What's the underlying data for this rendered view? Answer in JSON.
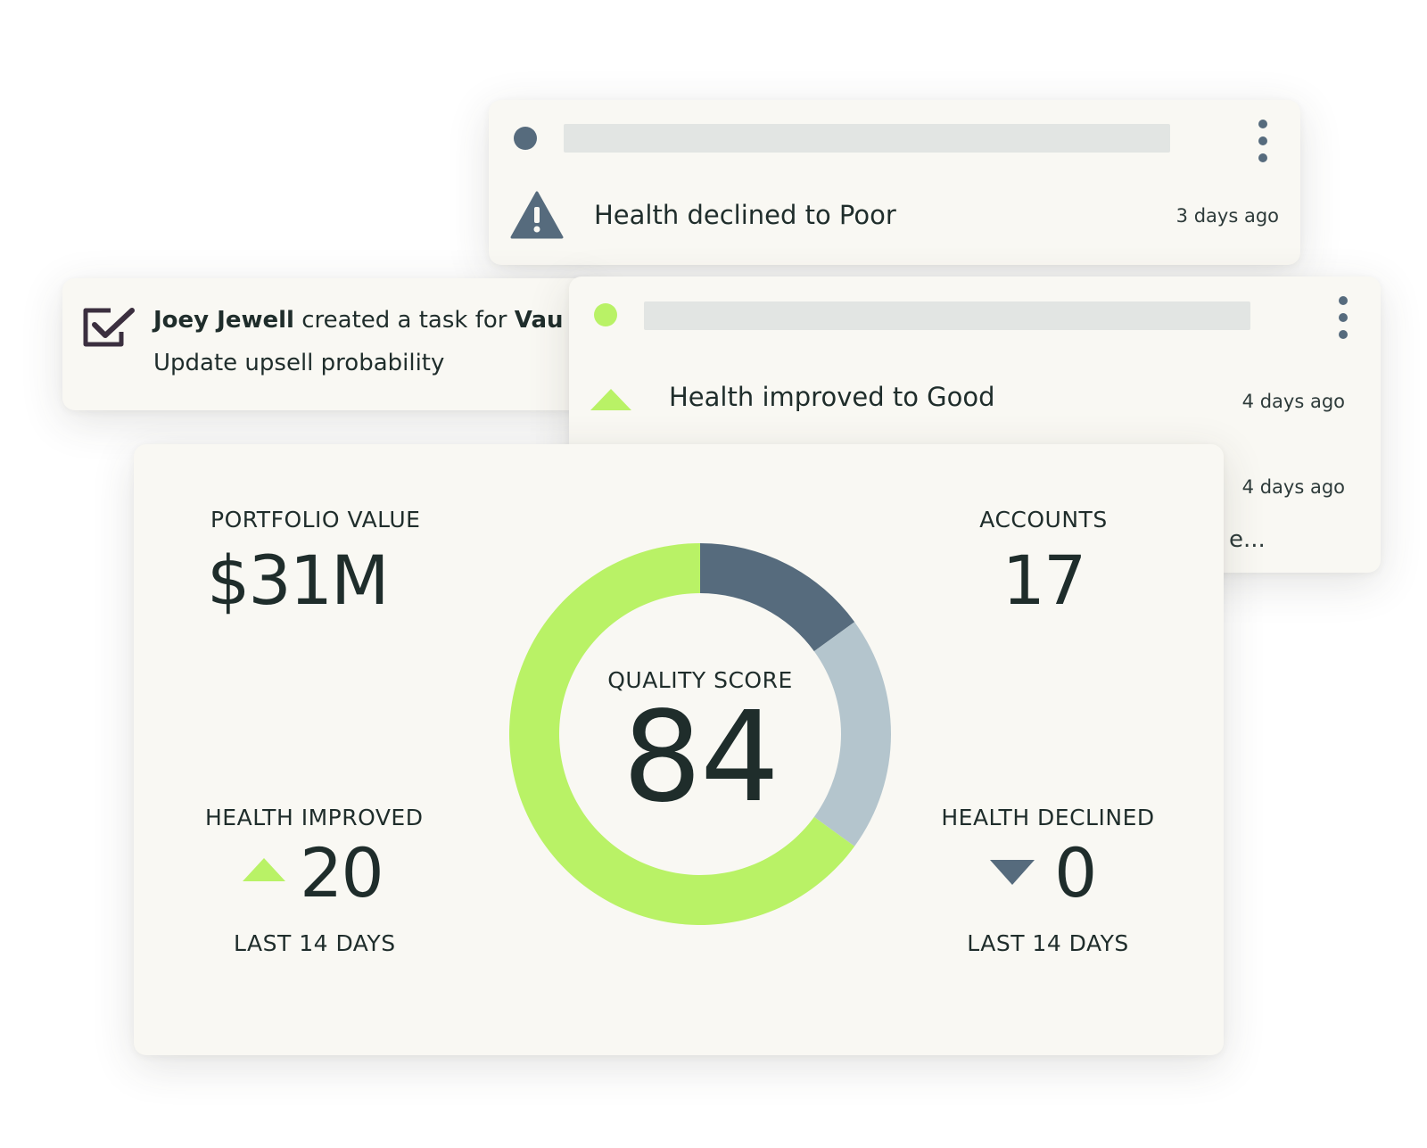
{
  "alerts": [
    {
      "text": "Health declined to Poor",
      "time": "3 days ago",
      "dot_color": "#566b7d",
      "icon": "warning-triangle-icon"
    },
    {
      "text": "Health improved to Good",
      "time": "4 days ago",
      "time_2": "4 days ago",
      "truncated_text": "e...",
      "dot_color": "#b9f266",
      "icon": "up-triangle-icon"
    }
  ],
  "task": {
    "author": "Joey Jewell",
    "action": " created a task for ",
    "target": "Vau",
    "title": "Update upsell probability",
    "icon": "checkbox-checked-icon"
  },
  "stats": {
    "portfolio_label": "PORTFOLIO VALUE",
    "portfolio_value": "$31M",
    "accounts_label": "ACCOUNTS",
    "accounts_value": "17",
    "quality_label": "QUALITY SCORE",
    "quality_value": "84",
    "improved_label": "HEALTH IMPROVED",
    "improved_value": "20",
    "improved_period": "LAST 14 DAYS",
    "declined_label": "HEALTH DECLINED",
    "declined_value": "0",
    "declined_period": "LAST 14 DAYS"
  },
  "colors": {
    "green": "#b9f266",
    "slate": "#566b7d",
    "light_slate": "#b4c5cd"
  },
  "chart_data": {
    "type": "pie",
    "donut": true,
    "title": "",
    "slices": [
      {
        "name": "",
        "value": 15,
        "color": "#566b7d"
      },
      {
        "name": "",
        "value": 20,
        "color": "#b4c5cd"
      },
      {
        "name": "",
        "value": 65,
        "color": "#b9f266"
      }
    ]
  }
}
